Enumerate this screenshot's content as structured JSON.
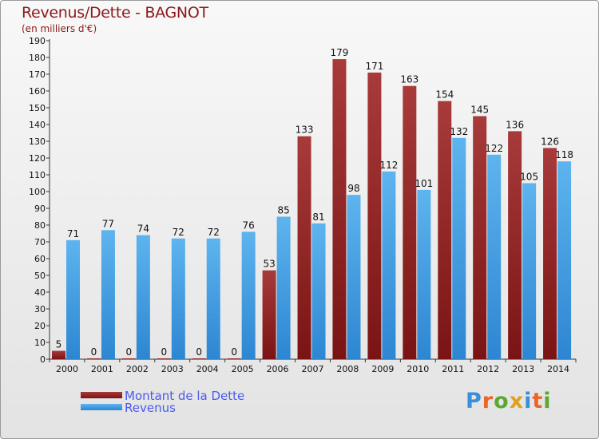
{
  "title": "Revenus/Dette - BAGNOT",
  "subtitle": "(en milliers d'€)",
  "logo_text": "Proxiti",
  "colors": {
    "dette": "#7a1414",
    "dette_light": "#a83a3a",
    "revenus": "#2d86d2",
    "revenus_light": "#5db4ee",
    "legend_text": "#4a5af0"
  },
  "chart_data": {
    "type": "bar",
    "title": "Revenus/Dette - BAGNOT",
    "ylabel": "(en milliers d'€)",
    "xlabel": "",
    "ylim": [
      0,
      190
    ],
    "ytick_step": 10,
    "grid": false,
    "legend_position": "bottom-left",
    "categories": [
      "2000",
      "2001",
      "2002",
      "2003",
      "2004",
      "2005",
      "2006",
      "2007",
      "2008",
      "2009",
      "2010",
      "2011",
      "2012",
      "2013",
      "2014"
    ],
    "series": [
      {
        "name": "Montant de la Dette",
        "values": [
          5,
          0,
          0,
          0,
          0,
          0,
          53,
          133,
          179,
          171,
          163,
          154,
          145,
          136,
          126
        ]
      },
      {
        "name": "Revenus",
        "values": [
          71,
          77,
          74,
          72,
          72,
          76,
          85,
          81,
          98,
          112,
          101,
          132,
          122,
          105,
          118
        ]
      }
    ]
  }
}
